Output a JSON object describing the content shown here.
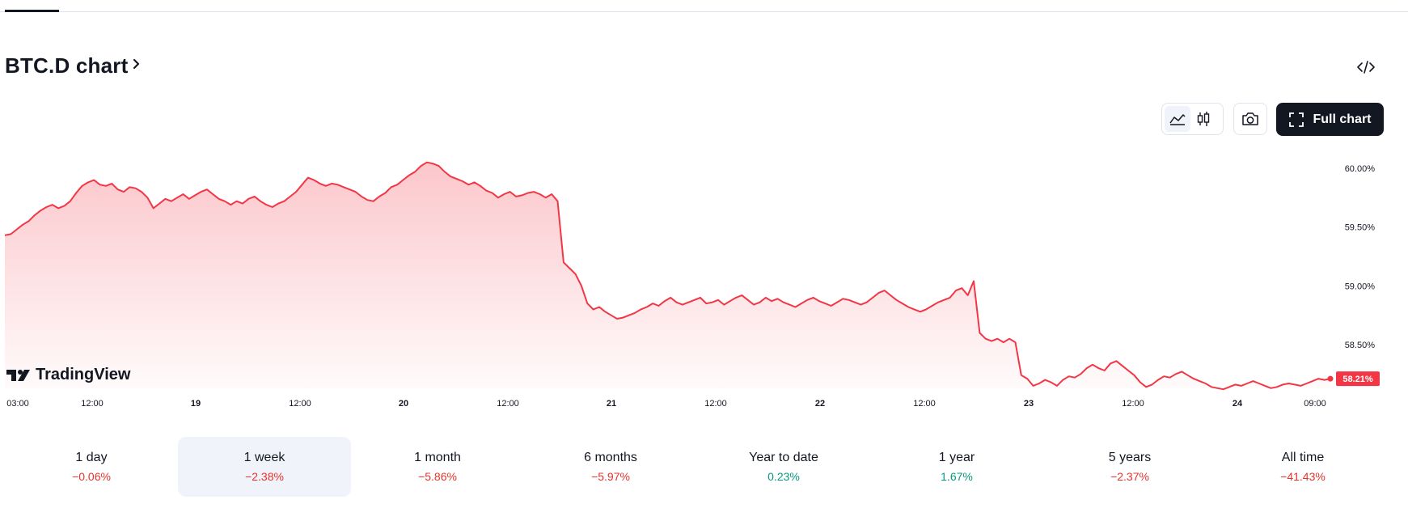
{
  "header": {
    "title": "BTC.D chart",
    "embed_icon": "code-embed-icon"
  },
  "toolbar": {
    "area_style_icon": "area-chart-icon",
    "candle_style_icon": "candles-icon",
    "snapshot_icon": "camera-icon",
    "full_chart_label": "Full chart",
    "full_chart_icon": "fullscreen-icon"
  },
  "watermark": {
    "text": "TradingView",
    "icon": "tradingview-logo-icon"
  },
  "colors": {
    "line": "#f23645",
    "area_top": "#f23645",
    "positive": "#089981",
    "negative": "#e5342b",
    "active_period_bg": "#f0f3fa"
  },
  "chart_data": {
    "type": "area",
    "symbol": "BTC.D",
    "y_ticks": [
      "60.00%",
      "59.50%",
      "59.00%",
      "58.50%"
    ],
    "y_tick_values": [
      60.0,
      59.5,
      59.0,
      58.5
    ],
    "ylim": [
      58.15,
      60.1
    ],
    "x_ticks": [
      "03:00",
      "12:00",
      "19",
      "12:00",
      "20",
      "12:00",
      "21",
      "12:00",
      "22",
      "12:00",
      "23",
      "12:00",
      "24",
      "09:00"
    ],
    "x_tick_bold": [
      false,
      false,
      true,
      false,
      true,
      false,
      true,
      false,
      true,
      false,
      true,
      false,
      true,
      false
    ],
    "last_value_label": "58.21%",
    "last_value": 58.21,
    "series": [
      {
        "values": [
          59.43,
          59.44,
          59.48,
          59.52,
          59.55,
          59.6,
          59.64,
          59.67,
          59.69,
          59.66,
          59.68,
          59.72,
          59.79,
          59.85,
          59.88,
          59.9,
          59.86,
          59.85,
          59.87,
          59.82,
          59.8,
          59.84,
          59.83,
          59.8,
          59.75,
          59.66,
          59.7,
          59.74,
          59.72,
          59.75,
          59.78,
          59.74,
          59.77,
          59.8,
          59.82,
          59.78,
          59.74,
          59.72,
          59.69,
          59.72,
          59.7,
          59.74,
          59.76,
          59.72,
          59.69,
          59.67,
          59.7,
          59.72,
          59.76,
          59.8,
          59.86,
          59.92,
          59.9,
          59.87,
          59.85,
          59.87,
          59.86,
          59.84,
          59.82,
          59.8,
          59.76,
          59.73,
          59.72,
          59.76,
          59.79,
          59.84,
          59.86,
          59.9,
          59.94,
          59.97,
          60.02,
          60.05,
          60.04,
          60.02,
          59.97,
          59.93,
          59.91,
          59.89,
          59.86,
          59.88,
          59.85,
          59.81,
          59.79,
          59.75,
          59.78,
          59.8,
          59.76,
          59.77,
          59.79,
          59.8,
          59.78,
          59.75,
          59.78,
          59.72,
          59.2,
          59.15,
          59.1,
          59.0,
          58.85,
          58.8,
          58.82,
          58.78,
          58.75,
          58.72,
          58.73,
          58.75,
          58.77,
          58.8,
          58.82,
          58.85,
          58.83,
          58.87,
          58.9,
          58.86,
          58.84,
          58.86,
          58.88,
          58.9,
          58.85,
          58.86,
          58.88,
          58.84,
          58.87,
          58.9,
          58.92,
          58.88,
          58.84,
          58.86,
          58.9,
          58.87,
          58.89,
          58.86,
          58.84,
          58.82,
          58.85,
          58.88,
          58.9,
          58.87,
          58.85,
          58.83,
          58.86,
          58.89,
          58.88,
          58.86,
          58.84,
          58.86,
          58.9,
          58.94,
          58.96,
          58.92,
          58.88,
          58.85,
          58.82,
          58.8,
          58.78,
          58.8,
          58.83,
          58.86,
          58.88,
          58.9,
          58.96,
          58.98,
          58.92,
          59.04,
          58.6,
          58.55,
          58.53,
          58.55,
          58.52,
          58.55,
          58.52,
          58.24,
          58.21,
          58.15,
          58.17,
          58.2,
          58.18,
          58.15,
          58.2,
          58.23,
          58.22,
          58.25,
          58.3,
          58.33,
          58.3,
          58.28,
          58.34,
          58.36,
          58.32,
          58.28,
          58.24,
          58.18,
          58.14,
          58.16,
          58.2,
          58.23,
          58.22,
          58.25,
          58.27,
          58.24,
          58.21,
          58.19,
          58.17,
          58.14,
          58.13,
          58.12,
          58.14,
          58.16,
          58.15,
          58.17,
          58.19,
          58.17,
          58.15,
          58.13,
          58.14,
          58.16,
          58.17,
          58.16,
          58.15,
          58.17,
          58.19,
          58.21,
          58.2,
          58.21
        ]
      }
    ]
  },
  "periods": [
    {
      "label": "1 day",
      "change": "−0.06%",
      "dir": "neg",
      "active": false
    },
    {
      "label": "1 week",
      "change": "−2.38%",
      "dir": "neg",
      "active": true
    },
    {
      "label": "1 month",
      "change": "−5.86%",
      "dir": "neg",
      "active": false
    },
    {
      "label": "6 months",
      "change": "−5.97%",
      "dir": "neg",
      "active": false
    },
    {
      "label": "Year to date",
      "change": "0.23%",
      "dir": "pos",
      "active": false
    },
    {
      "label": "1 year",
      "change": "1.67%",
      "dir": "pos",
      "active": false
    },
    {
      "label": "5 years",
      "change": "−2.37%",
      "dir": "neg",
      "active": false
    },
    {
      "label": "All time",
      "change": "−41.43%",
      "dir": "neg",
      "active": false
    }
  ]
}
